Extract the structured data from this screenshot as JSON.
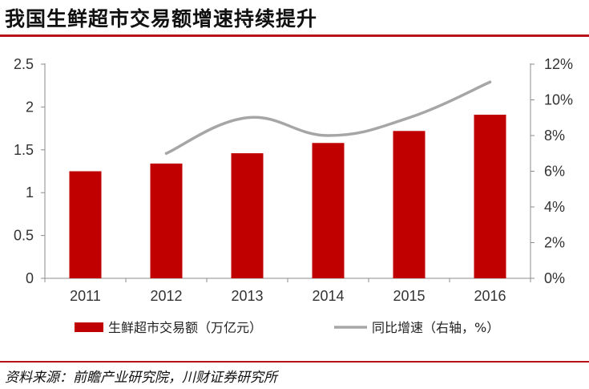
{
  "title": "我国生鲜超市交易额增速持续提升",
  "source": "资料来源：前瞻产业研究院，川财证券研究所",
  "chart_data": {
    "type": "bar+line",
    "categories": [
      "2011",
      "2012",
      "2013",
      "2014",
      "2015",
      "2016"
    ],
    "series": [
      {
        "name": "生鲜超市交易额（万亿元）",
        "type": "bar",
        "axis": "left",
        "color": "#c00000",
        "values": [
          1.25,
          1.34,
          1.46,
          1.58,
          1.72,
          1.91
        ]
      },
      {
        "name": "同比增速（右轴，%）",
        "type": "line",
        "axis": "right",
        "color": "#a6a6a6",
        "x": [
          "2012",
          "2013",
          "2014",
          "2015",
          "2016"
        ],
        "values": [
          7.0,
          9.0,
          8.0,
          9.0,
          11.0
        ]
      }
    ],
    "left_axis": {
      "ylim": [
        0,
        2.5
      ],
      "ticks": [
        "0",
        "0.5",
        "1",
        "1.5",
        "2",
        "2.5"
      ]
    },
    "right_axis": {
      "ylim": [
        0,
        12
      ],
      "ticks": [
        "0%",
        "2%",
        "4%",
        "6%",
        "8%",
        "10%",
        "12%"
      ]
    },
    "grid": false,
    "legend_position": "bottom"
  }
}
